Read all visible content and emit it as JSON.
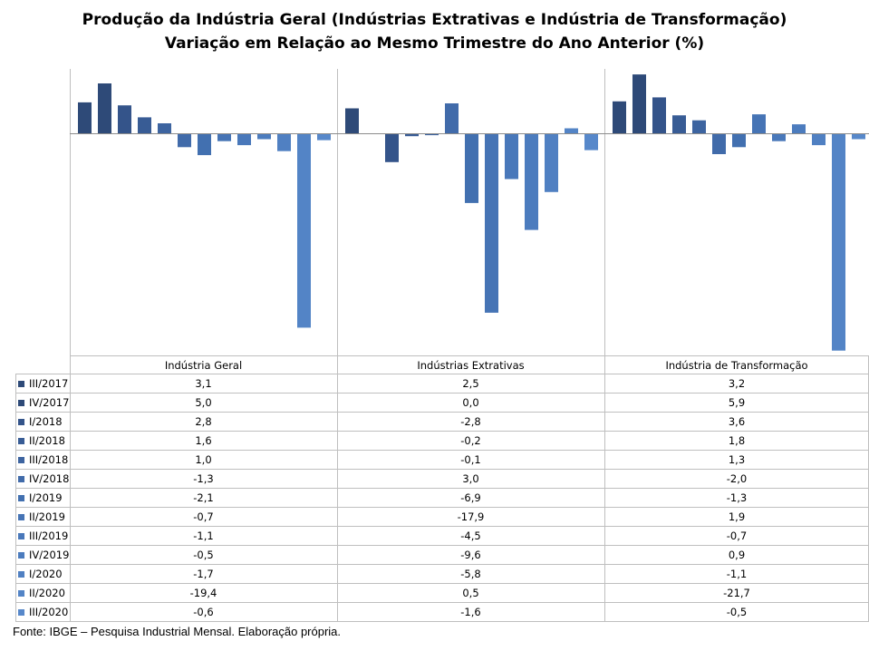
{
  "title_line1": "Produção da Indústria Geral (Indústrias Extrativas e Indústria de Transformação)",
  "title_line2": "Variação em Relação ao Mesmo Trimestre do Ano Anterior (%)",
  "source": "Fonte: IBGE – Pesquisa Industrial Mensal. Elaboração própria.",
  "chart_data": {
    "type": "bar",
    "title": "Produção da Indústria Geral (Indústrias Extrativas e Indústria de Transformação) — Variação em Relação ao Mesmo Trimestre do Ano Anterior (%)",
    "panels": [
      "Indústria Geral",
      "Indústrias Extrativas",
      "Indústria de Transformação"
    ],
    "series": [
      {
        "name": "III/2017",
        "color": "#2E4A78",
        "values": [
          3.1,
          2.5,
          3.2
        ],
        "labels": [
          "3,1",
          "2,5",
          "3,2"
        ]
      },
      {
        "name": "IV/2017",
        "color": "#2E4A78",
        "values": [
          5.0,
          0.0,
          5.9
        ],
        "labels": [
          "5,0",
          "0,0",
          "5,9"
        ]
      },
      {
        "name": "I/2018",
        "color": "#34548A",
        "values": [
          2.8,
          -2.8,
          3.6
        ],
        "labels": [
          "2,8",
          "-2,8",
          "3,6"
        ]
      },
      {
        "name": "II/2018",
        "color": "#385C95",
        "values": [
          1.6,
          -0.2,
          1.8
        ],
        "labels": [
          "1,6",
          "-0,2",
          "1,8"
        ]
      },
      {
        "name": "III/2018",
        "color": "#3D64A0",
        "values": [
          1.0,
          -0.1,
          1.3
        ],
        "labels": [
          "1,0",
          "-0,1",
          "1,3"
        ]
      },
      {
        "name": "IV/2018",
        "color": "#416BAA",
        "values": [
          -1.3,
          3.0,
          -2.0
        ],
        "labels": [
          "-1,3",
          "3,0",
          "-2,0"
        ]
      },
      {
        "name": "I/2019",
        "color": "#4270B0",
        "values": [
          -2.1,
          -6.9,
          -1.3
        ],
        "labels": [
          "-2,1",
          "-6,9",
          "-1,3"
        ]
      },
      {
        "name": "II/2019",
        "color": "#4674B5",
        "values": [
          -0.7,
          -17.9,
          1.9
        ],
        "labels": [
          "-0,7",
          "-17,9",
          "1,9"
        ]
      },
      {
        "name": "III/2019",
        "color": "#4978BA",
        "values": [
          -1.1,
          -4.5,
          -0.7
        ],
        "labels": [
          "-1,1",
          "-4,5",
          "-0,7"
        ]
      },
      {
        "name": "IV/2019",
        "color": "#4C7CBE",
        "values": [
          -0.5,
          -9.6,
          0.9
        ],
        "labels": [
          "-0,5",
          "-9,6",
          "0,9"
        ]
      },
      {
        "name": "I/2020",
        "color": "#5080C2",
        "values": [
          -1.7,
          -5.8,
          -1.1
        ],
        "labels": [
          "-1,7",
          "-5,8",
          "-1,1"
        ]
      },
      {
        "name": "II/2020",
        "color": "#5384C6",
        "values": [
          -19.4,
          0.5,
          -21.7
        ],
        "labels": [
          "-19,4",
          "0,5",
          "-21,7"
        ]
      },
      {
        "name": "III/2020",
        "color": "#5788CA",
        "values": [
          -0.6,
          -1.6,
          -0.5
        ],
        "labels": [
          "-0,6",
          "-1,6",
          "-0,5"
        ]
      }
    ],
    "ylim": [
      -22.0,
      6.0
    ],
    "grid": false,
    "legend": "data-table-below"
  }
}
